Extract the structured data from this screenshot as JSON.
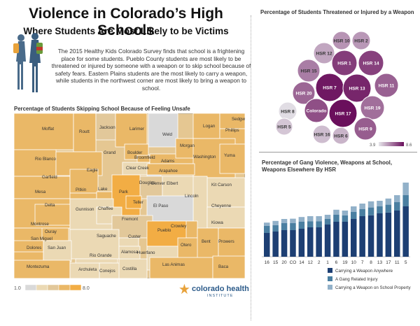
{
  "header": {
    "title": "Violence in Colorado’s High Schools",
    "subtitle": "Where Students Are Most Likely to be Victims",
    "intro": "The 2015 Healthy Kids Colorado Survey finds that school is a frightening place for some students. Pueblo County students are most likely to be threatened or injured by someone with a weapon or to skip school because of safety fears. Eastern Plains students are the most likely to carry a weapon, while students in the northwest corner are most likely to bring a weapon to school."
  },
  "map": {
    "title": "Percentage of Students Skipping School Because of Feeling Unsafe",
    "legend": {
      "min": "1.0",
      "max": "8.0",
      "colors": [
        "#d9d9d9",
        "#ebd9b4",
        "#e2c89a",
        "#eab867",
        "#f2ad44"
      ]
    },
    "counties": [
      "Moffat",
      "Routt",
      "Jackson",
      "Larimer",
      "Weld",
      "Logan",
      "Sedgwick",
      "Phillips",
      "Rio Blanco",
      "Grand",
      "Boulder",
      "Broomfield",
      "Adams",
      "Morgan",
      "Washington",
      "Yuma",
      "Garfield",
      "Eagle",
      "Clear Creek",
      "Denver",
      "Arapahoe",
      "Douglas",
      "Elbert",
      "Kit Carson",
      "Mesa",
      "Pitkin",
      "Lake",
      "Park",
      "Teller",
      "Lincoln",
      "Cheyenne",
      "Delta",
      "Gunnison",
      "Chaffee",
      "El Paso",
      "Kiowa",
      "Montrose",
      "Fremont",
      "Crowley",
      "Ouray",
      "San Miguel",
      "Saguache",
      "Custer",
      "Pueblo",
      "Otero",
      "Bent",
      "Prowers",
      "Dolores",
      "San Juan",
      "Rio Grande",
      "Huerfano",
      "Las Animas",
      "Baca",
      "Montezuma",
      "Archuleta",
      "Conejos",
      "Costilla",
      "Alamosa"
    ]
  },
  "logo": {
    "line1": "colorado health",
    "line2": "INSTITUTE"
  },
  "bubbles": {
    "title": "Percentage of Students Threatened or Injured by a Weapon",
    "legend": {
      "min": "3.9",
      "max": "8.6",
      "color_min": "#e6e6ea",
      "color_max": "#6a0f5c"
    },
    "items": [
      {
        "label": "HSR 10",
        "value": 5.7
      },
      {
        "label": "HSR 2",
        "value": 5.6
      },
      {
        "label": "HSR 12",
        "value": 5.3
      },
      {
        "label": "HSR 1",
        "value": 7.6
      },
      {
        "label": "HSR 14",
        "value": 7.5
      },
      {
        "label": "HSR 15",
        "value": 6.2
      },
      {
        "label": "HSR 11",
        "value": 6.8
      },
      {
        "label": "HSR 7",
        "value": 8.4
      },
      {
        "label": "HSR 13",
        "value": 8.1
      },
      {
        "label": "HSR 20",
        "value": 6.7
      },
      {
        "label": "HSR 8",
        "value": 4.1
      },
      {
        "label": "Colorado",
        "value": 7.2
      },
      {
        "label": "HSR 17",
        "value": 8.6
      },
      {
        "label": "HSR 19",
        "value": 6.5
      },
      {
        "label": "HSR 5",
        "value": 4.6
      },
      {
        "label": "HSR 16",
        "value": 4.8
      },
      {
        "label": "HSR 6",
        "value": 5.0
      },
      {
        "label": "HSR 9",
        "value": 6.9
      }
    ]
  },
  "bars": {
    "title": "Percentage of Gang Violence, Weapons at School, Weapons Elsewhere By HSR",
    "colors": [
      "#1d3f73",
      "#4a7fa1",
      "#92b1c9"
    ],
    "categories": [
      "16",
      "15",
      "20",
      "CO",
      "14",
      "12",
      "2",
      "1",
      "6",
      "19",
      "10",
      "7",
      "8",
      "13",
      "17",
      "11",
      "5"
    ],
    "legend": [
      "Carrying a Weapon Anywhere",
      "A Gang Related Injury",
      "Carrying a Weapon on School Property"
    ]
  },
  "chart_data": {
    "type": "bar",
    "stacked": true,
    "title": "Percentage of Gang Violence, Weapons at School, Weapons Elsewhere By HSR",
    "categories": [
      "16",
      "15",
      "20",
      "CO",
      "14",
      "12",
      "2",
      "1",
      "6",
      "19",
      "10",
      "7",
      "8",
      "13",
      "17",
      "11",
      "5"
    ],
    "series": [
      {
        "name": "Carrying a Weapon Anywhere",
        "values": [
          8.5,
          9.0,
          9.5,
          9.5,
          10.0,
          10.5,
          10.5,
          11.5,
          12.5,
          12.5,
          13.5,
          14.5,
          14.8,
          15.5,
          15.8,
          16.5,
          18.0
        ]
      },
      {
        "name": "A Gang Related Injury",
        "values": [
          2.5,
          2.3,
          2.5,
          2.5,
          2.5,
          2.2,
          2.2,
          2.0,
          2.5,
          2.3,
          2.5,
          2.5,
          2.8,
          2.5,
          2.8,
          3.0,
          4.0
        ]
      },
      {
        "name": "Carrying a Weapon on School Property",
        "values": [
          1.2,
          1.5,
          1.5,
          1.6,
          1.7,
          1.8,
          1.8,
          1.5,
          1.8,
          1.7,
          2.0,
          2.0,
          2.2,
          2.0,
          2.2,
          2.5,
          4.5
        ]
      }
    ]
  }
}
